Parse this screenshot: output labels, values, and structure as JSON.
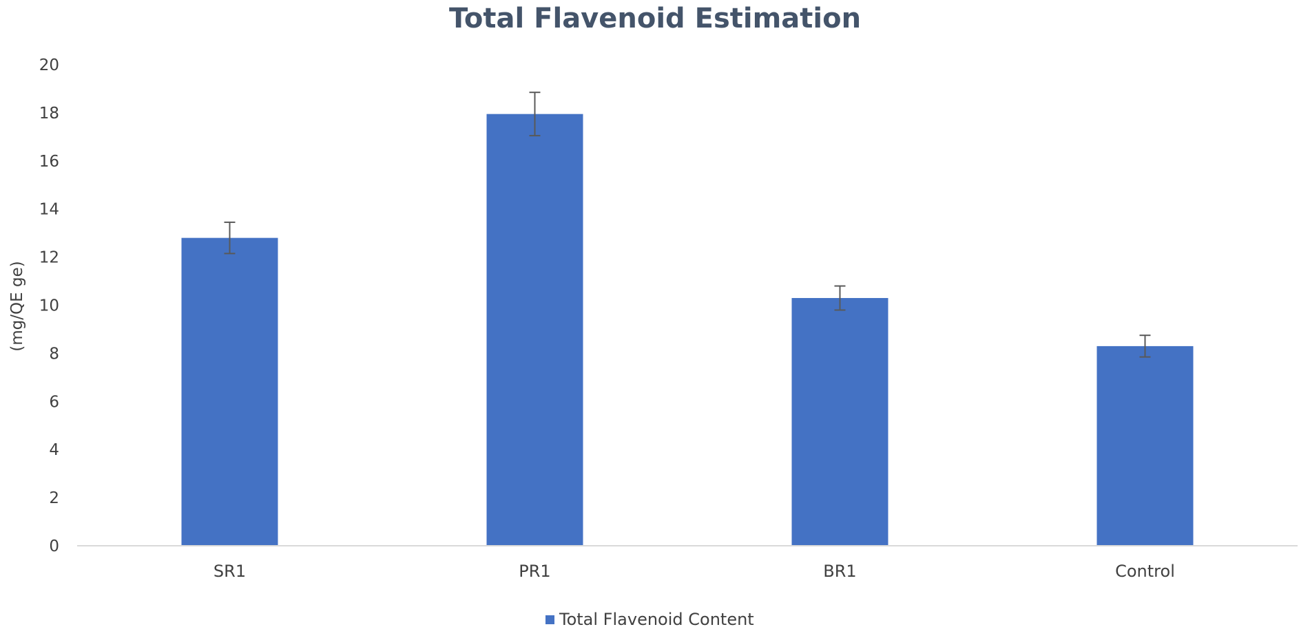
{
  "chart_data": {
    "type": "bar",
    "title": "Total Flavenoid Estimation",
    "xlabel": "",
    "ylabel": "(mg/QE ge)",
    "categories": [
      "SR1",
      "PR1",
      "BR1",
      "Control"
    ],
    "series": [
      {
        "name": "Total Flavenoid Content",
        "values": [
          12.8,
          17.95,
          10.3,
          8.3
        ],
        "errors": [
          0.65,
          0.9,
          0.5,
          0.45
        ],
        "color": "#4472c4"
      }
    ],
    "ylim": [
      0,
      20
    ],
    "yticks": [
      0,
      2,
      4,
      6,
      8,
      10,
      12,
      14,
      16,
      18,
      20
    ],
    "grid": false,
    "legend_position": "bottom"
  }
}
